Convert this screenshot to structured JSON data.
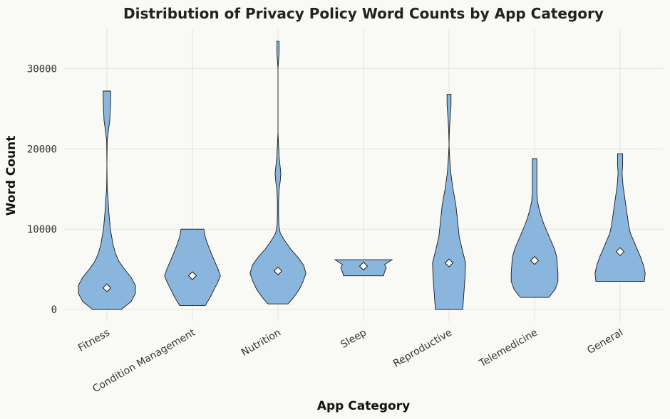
{
  "chart_data": {
    "type": "violin",
    "title": "Distribution of Privacy Policy Word Counts by App Category",
    "xlabel": "App Category",
    "ylabel": "Word Count",
    "ylim": [
      -1500,
      35000
    ],
    "yticks": [
      "0",
      "10000",
      "20000",
      "30000"
    ],
    "ytick_values": [
      0,
      10000,
      20000,
      30000
    ],
    "grid": true,
    "fill_color": "#8ab6de",
    "edge_color": "#1a1a1a",
    "categories": [
      "Fitness",
      "Condition Management",
      "Nutrition",
      "Sleep",
      "Reproductive",
      "Telemedicine",
      "General"
    ],
    "series": [
      {
        "category": "Fitness",
        "min": 0,
        "max": 27200,
        "marker": 2700,
        "profile": [
          [
            0,
            0.5
          ],
          [
            1000,
            0.85
          ],
          [
            2000,
            1.0
          ],
          [
            3000,
            1.0
          ],
          [
            4000,
            0.85
          ],
          [
            5000,
            0.62
          ],
          [
            6000,
            0.42
          ],
          [
            7000,
            0.3
          ],
          [
            8000,
            0.22
          ],
          [
            9000,
            0.17
          ],
          [
            10000,
            0.12
          ],
          [
            12000,
            0.07
          ],
          [
            14000,
            0.035
          ],
          [
            15000,
            0.01
          ],
          [
            18000,
            0.0
          ],
          [
            21000,
            0.01
          ],
          [
            22500,
            0.06
          ],
          [
            23500,
            0.1
          ],
          [
            25000,
            0.12
          ],
          [
            26000,
            0.13
          ],
          [
            27200,
            0.13
          ]
        ]
      },
      {
        "category": "Condition Management",
        "min": 500,
        "max": 10000,
        "marker": 4200,
        "profile": [
          [
            500,
            0.45
          ],
          [
            1500,
            0.62
          ],
          [
            2500,
            0.76
          ],
          [
            3500,
            0.9
          ],
          [
            4200,
            0.98
          ],
          [
            5000,
            0.9
          ],
          [
            6000,
            0.78
          ],
          [
            7000,
            0.66
          ],
          [
            8000,
            0.55
          ],
          [
            9000,
            0.45
          ],
          [
            10000,
            0.4
          ]
        ]
      },
      {
        "category": "Nutrition",
        "min": 700,
        "max": 33400,
        "marker": 4800,
        "profile": [
          [
            700,
            0.35
          ],
          [
            1500,
            0.55
          ],
          [
            2500,
            0.75
          ],
          [
            3500,
            0.88
          ],
          [
            4500,
            0.98
          ],
          [
            5500,
            0.9
          ],
          [
            6500,
            0.7
          ],
          [
            7500,
            0.45
          ],
          [
            8500,
            0.25
          ],
          [
            9500,
            0.08
          ],
          [
            10500,
            0.03
          ],
          [
            12000,
            0.02
          ],
          [
            13500,
            0.02
          ],
          [
            15000,
            0.04
          ],
          [
            16000,
            0.08
          ],
          [
            17000,
            0.1
          ],
          [
            18000,
            0.07
          ],
          [
            19000,
            0.04
          ],
          [
            20500,
            0.02
          ],
          [
            22000,
            0.0
          ],
          [
            30000,
            0.0
          ],
          [
            31000,
            0.02
          ],
          [
            32000,
            0.04
          ],
          [
            33400,
            0.04
          ]
        ]
      },
      {
        "category": "Sleep",
        "min": 4200,
        "max": 6200,
        "marker": 5400,
        "profile": [
          [
            4200,
            0.7
          ],
          [
            4700,
            0.74
          ],
          [
            5200,
            0.8
          ],
          [
            5600,
            0.74
          ],
          [
            6200,
            1.0
          ]
        ]
      },
      {
        "category": "Reproductive",
        "min": 0,
        "max": 26800,
        "marker": 5800,
        "profile": [
          [
            0,
            0.48
          ],
          [
            2000,
            0.52
          ],
          [
            4000,
            0.56
          ],
          [
            5800,
            0.58
          ],
          [
            7500,
            0.46
          ],
          [
            9000,
            0.36
          ],
          [
            11000,
            0.3
          ],
          [
            13000,
            0.24
          ],
          [
            15000,
            0.14
          ],
          [
            17000,
            0.06
          ],
          [
            19000,
            0.02
          ],
          [
            20500,
            0.0
          ],
          [
            22000,
            0.01
          ],
          [
            23500,
            0.03
          ],
          [
            24500,
            0.05
          ],
          [
            25500,
            0.07
          ],
          [
            26800,
            0.07
          ]
        ]
      },
      {
        "category": "Telemedicine",
        "min": 1500,
        "max": 18800,
        "marker": 6100,
        "profile": [
          [
            1500,
            0.5
          ],
          [
            2500,
            0.72
          ],
          [
            3500,
            0.82
          ],
          [
            4500,
            0.82
          ],
          [
            5500,
            0.8
          ],
          [
            6500,
            0.78
          ],
          [
            7500,
            0.7
          ],
          [
            8500,
            0.58
          ],
          [
            9500,
            0.46
          ],
          [
            10500,
            0.34
          ],
          [
            11500,
            0.24
          ],
          [
            12500,
            0.16
          ],
          [
            13500,
            0.1
          ],
          [
            14500,
            0.08
          ],
          [
            16000,
            0.08
          ],
          [
            17500,
            0.08
          ],
          [
            18800,
            0.08
          ]
        ]
      },
      {
        "category": "General",
        "min": 3500,
        "max": 19400,
        "marker": 7200,
        "profile": [
          [
            3500,
            0.85
          ],
          [
            4500,
            0.88
          ],
          [
            5500,
            0.82
          ],
          [
            6500,
            0.72
          ],
          [
            7500,
            0.6
          ],
          [
            8500,
            0.48
          ],
          [
            9500,
            0.36
          ],
          [
            10500,
            0.3
          ],
          [
            11500,
            0.26
          ],
          [
            12500,
            0.22
          ],
          [
            13500,
            0.18
          ],
          [
            14500,
            0.14
          ],
          [
            15500,
            0.1
          ],
          [
            17000,
            0.07
          ],
          [
            18000,
            0.09
          ],
          [
            19400,
            0.09
          ]
        ]
      }
    ]
  }
}
